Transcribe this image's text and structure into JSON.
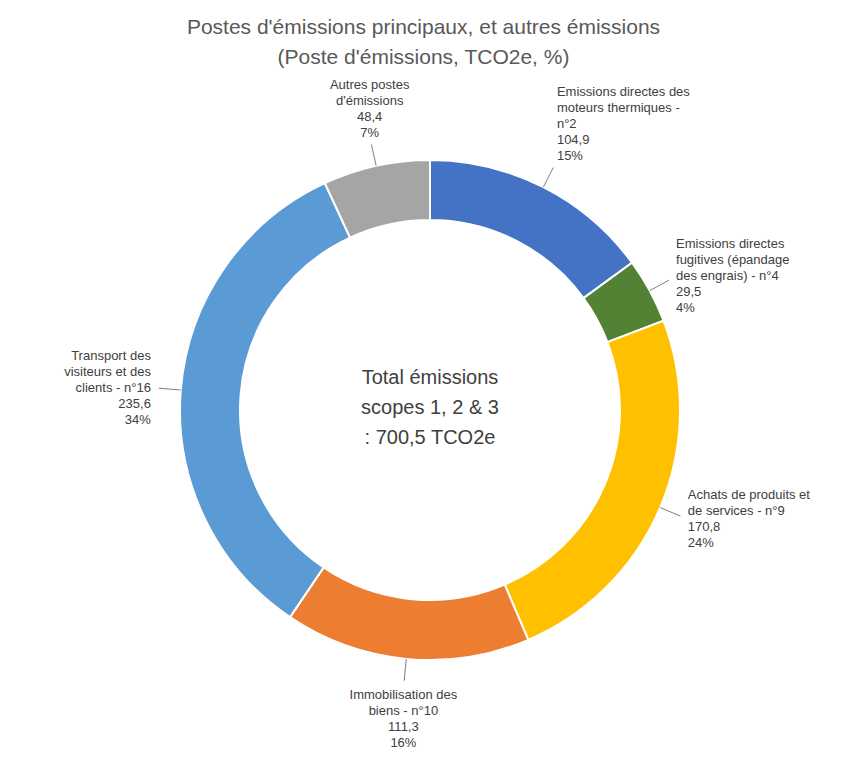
{
  "chart_data": {
    "type": "donut",
    "title": "Postes d'émissions principaux, et autres émissions",
    "subtitle": "(Poste d'émissions, TCO2e, %)",
    "center_text": [
      "Total émissions",
      "scopes 1, 2 & 3",
      ": 700,5 TCO2e"
    ],
    "categories": [
      "Emissions directes des moteurs thermiques - n°2",
      "Emissions directes fugitives (épandage des engrais) - n°4",
      "Achats de produits et de services - n°9",
      "Immobilisation des biens - n°10",
      "Transport des visiteurs et des clients - n°16",
      "Autres postes d'émissions"
    ],
    "values": [
      104.9,
      29.5,
      170.8,
      111.3,
      235.6,
      48.4
    ],
    "value_labels": [
      "104,9",
      "29,5",
      "170,8",
      "111,3",
      "235,6",
      "48,4"
    ],
    "percentages": [
      15,
      4,
      24,
      16,
      34,
      7
    ],
    "percentage_labels": [
      "15%",
      "4%",
      "24%",
      "16%",
      "34%",
      "7%"
    ],
    "colors": [
      "#4472C4",
      "#548235",
      "#FFC000",
      "#ED7D31",
      "#5B9BD5",
      "#A5A5A5"
    ],
    "data_labels": true
  }
}
